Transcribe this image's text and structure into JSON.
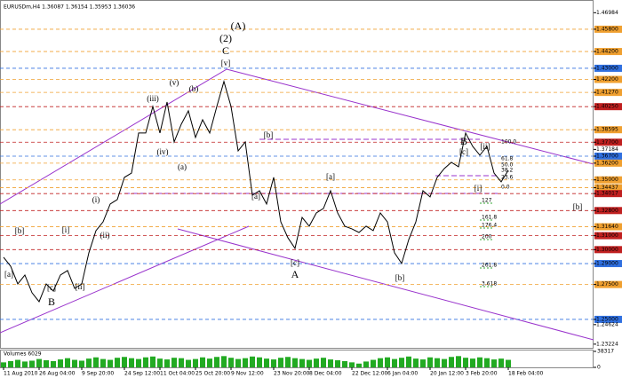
{
  "chart_data": {
    "type": "line",
    "title": "EURUSDm,H4  1.36087 1.36154 1.35953 1.36036",
    "series": [
      {
        "color": "#000000",
        "values": [
          1.2945,
          1.2881,
          1.2754,
          1.2818,
          1.2691,
          1.2627,
          1.2754,
          1.2703,
          1.2818,
          1.285,
          1.2722,
          1.2754,
          1.2977,
          1.3136,
          1.3199,
          1.3327,
          1.3359,
          1.3518,
          1.3549,
          1.3836,
          1.3836,
          1.4026,
          1.3836,
          1.4058,
          1.3772,
          1.3899,
          1.3995,
          1.3804,
          1.3931,
          1.3836,
          1.4026,
          1.4205,
          1.4026,
          1.3708,
          1.3772,
          1.339,
          1.3422,
          1.3327,
          1.3518,
          1.3199,
          1.3085,
          1.3009,
          1.3231,
          1.3168,
          1.3263,
          1.3295,
          1.3422,
          1.3263,
          1.3168,
          1.3149,
          1.3123,
          1.3168,
          1.3136,
          1.3263,
          1.3199,
          1.2977,
          1.2901,
          1.3072,
          1.3199,
          1.3422,
          1.3378,
          1.3518,
          1.3581,
          1.3626,
          1.3594,
          1.3836,
          1.374,
          1.3677,
          1.374,
          1.3549,
          1.3486,
          1.3568
        ]
      }
    ],
    "xticks": [
      {
        "value": 0,
        "label": "11 Aug 2010"
      },
      {
        "value": 5,
        "label": "26 Aug 04:00"
      },
      {
        "value": 11,
        "label": "9 Sep 20:00"
      },
      {
        "value": 17,
        "label": "24 Sep 12:00"
      },
      {
        "value": 22,
        "label": "11 Oct 04:00"
      },
      {
        "value": 27,
        "label": "25 Oct 20:00"
      },
      {
        "value": 32,
        "label": "9 Nov 12:00"
      },
      {
        "value": 38,
        "label": "23 Nov 20:00"
      },
      {
        "value": 43,
        "label": "8 Dec 04:00"
      },
      {
        "value": 49,
        "label": "22 Dec 12:00"
      },
      {
        "value": 54,
        "label": "6 Jan 04:00"
      },
      {
        "value": 60,
        "label": "20 Jan 12:00"
      },
      {
        "value": 65,
        "label": "3 Feb 20:00"
      },
      {
        "value": 71,
        "label": "18 Feb 04:00"
      }
    ],
    "ylim": [
      1.2296,
      1.4764
    ],
    "yticks": [
      {
        "value": 1.46984,
        "label": "1.46984"
      },
      {
        "value": 1.458,
        "label": "1.45800",
        "color": "#f0a030"
      },
      {
        "value": 1.442,
        "label": "1.44200",
        "color": "#f0a030"
      },
      {
        "value": 1.43,
        "label": "1.43000",
        "color": "#3070e0"
      },
      {
        "value": 1.422,
        "label": "1.42200",
        "color": "#f0a030"
      },
      {
        "value": 1.4127,
        "label": "1.41270",
        "color": "#f0a030"
      },
      {
        "value": 1.4025,
        "label": "1.40250",
        "color": "#c02020"
      },
      {
        "value": 1.38595,
        "label": "1.38595",
        "color": "#f0a030"
      },
      {
        "value": 1.377,
        "label": "1.37700",
        "color": "#c02020"
      },
      {
        "value": 1.37184,
        "label": "1.37184"
      },
      {
        "value": 1.367,
        "label": "1.36700",
        "color": "#3070e0"
      },
      {
        "value": 1.362,
        "label": "1.36200",
        "color": "#f0a030"
      },
      {
        "value": 1.35,
        "label": "1.35000",
        "color": "#f0a030"
      },
      {
        "value": 1.34437,
        "label": "1.34437",
        "color": "#f0a030"
      },
      {
        "value": 1.34017,
        "label": "1.34017",
        "color": "#c02020"
      },
      {
        "value": 1.328,
        "label": "1.32800",
        "color": "#c02020"
      },
      {
        "value": 1.3164,
        "label": "1.31640",
        "color": "#f0a030"
      },
      {
        "value": 1.31,
        "label": "1.31000",
        "color": "#c02020"
      },
      {
        "value": 1.3,
        "label": "1.30000",
        "color": "#c02020"
      },
      {
        "value": 1.29,
        "label": "1.29000",
        "color": "#3070e0"
      },
      {
        "value": 1.275,
        "label": "1.27500",
        "color": "#f0a030"
      },
      {
        "value": 1.25,
        "label": "1.25000",
        "color": "#3070e0"
      },
      {
        "value": 1.24624,
        "label": "1.24624"
      },
      {
        "value": 1.23224,
        "label": "1.23224"
      }
    ],
    "wave_labels": [
      {
        "text": "(A)",
        "color": "#9933cc"
      },
      {
        "text": "(2)",
        "color": "#333399"
      },
      {
        "text": "C",
        "color": "#333399"
      },
      {
        "text": "[v]",
        "color": "#333399"
      },
      {
        "text": "(v)",
        "color": "#333399"
      },
      {
        "text": "(b)",
        "color": "#333399"
      },
      {
        "text": "(iii)",
        "color": "#333399"
      },
      {
        "text": "(iv)",
        "color": "#333399"
      },
      {
        "text": "(a)",
        "color": "#333399"
      },
      {
        "text": "[b]",
        "color": "#333399"
      },
      {
        "text": "[a]",
        "color": "#333399"
      },
      {
        "text": "[a]",
        "color": "#333399"
      },
      {
        "text": "[c]",
        "color": "#333399"
      },
      {
        "text": "A",
        "color": "#333399"
      },
      {
        "text": "[b]",
        "color": "#333399"
      },
      {
        "text": "B",
        "color": "#333399"
      },
      {
        "text": "[c]",
        "color": "#333399"
      },
      {
        "text": "[ii]",
        "color": "#333399"
      },
      {
        "text": "[i]",
        "color": "#333399"
      },
      {
        "text": "[b]",
        "color": "#333399"
      },
      {
        "text": "[b]",
        "color": "#333399"
      },
      {
        "text": "[i]",
        "color": "#333399"
      },
      {
        "text": "(i)",
        "color": "#333399"
      },
      {
        "text": "(ii)",
        "color": "#333399"
      },
      {
        "text": "[a]",
        "color": "#333399"
      },
      {
        "text": "[c]",
        "color": "#333399"
      },
      {
        "text": "[ii]",
        "color": "#333399"
      },
      {
        "text": "B",
        "color": "#333399"
      }
    ],
    "fib_labels": [
      {
        "text": "100.0",
        "color": "#dd44cc"
      },
      {
        "text": "61.8",
        "color": "#dd44cc"
      },
      {
        "text": "50.0",
        "color": "#dd44cc"
      },
      {
        "text": "38.2",
        "color": "#dd44cc"
      },
      {
        "text": "23.6",
        "color": "#dd44cc"
      },
      {
        "text": "0.0",
        "color": "#dd44cc"
      },
      {
        "text": "127",
        "color": "#33aa33"
      },
      {
        "text": "161.8",
        "color": "#33aa33"
      },
      {
        "text": "176.4",
        "color": "#33aa33"
      },
      {
        "text": "200",
        "color": "#33aa33"
      },
      {
        "text": "261.8",
        "color": "#33aa33"
      },
      {
        "text": "3.618",
        "color": "#33aa33"
      }
    ],
    "volume": {
      "label": "Volumes 6029",
      "color": "#22aa22",
      "ylim": [
        0,
        38317
      ],
      "yticks": [
        38317,
        0
      ],
      "values": [
        12000,
        15000,
        18000,
        14000,
        16000,
        20000,
        17000,
        15000,
        19000,
        22000,
        18000,
        16000,
        21000,
        24000,
        20000,
        18000,
        23000,
        25000,
        22000,
        20000,
        24000,
        26000,
        21000,
        19000,
        23000,
        22000,
        18000,
        20000,
        24000,
        21000,
        25000,
        27000,
        23000,
        20000,
        22000,
        26000,
        24000,
        21000,
        19000,
        23000,
        25000,
        22000,
        20000,
        18000,
        21000,
        23000,
        19000,
        17000,
        15000,
        12000,
        9000,
        14000,
        18000,
        22000,
        24000,
        20000,
        23000,
        26000,
        21000,
        19000,
        24000,
        22000,
        20000,
        25000,
        27000,
        23000,
        21000,
        24000,
        22000,
        19000,
        21000,
        18000
      ]
    }
  }
}
